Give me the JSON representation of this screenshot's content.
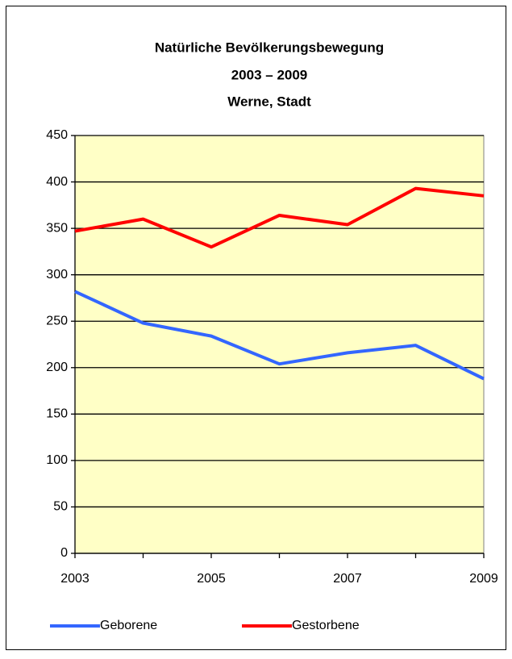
{
  "chart_data": {
    "type": "line",
    "title": [
      "Natürliche Bevölkerungsbewegung",
      "2003 – 2009",
      "Werne, Stadt"
    ],
    "x": [
      2003,
      2004,
      2005,
      2006,
      2007,
      2008,
      2009
    ],
    "xlim": [
      2003,
      2009
    ],
    "xticks": [
      2003,
      2005,
      2007,
      2009
    ],
    "ylim": [
      0,
      450
    ],
    "yticks": [
      0,
      50,
      100,
      150,
      200,
      250,
      300,
      350,
      400,
      450
    ],
    "grid": true,
    "legend": "bottom",
    "series": [
      {
        "name": "Geborene",
        "color": "#3366ff",
        "values": [
          282,
          248,
          234,
          204,
          216,
          224,
          188
        ]
      },
      {
        "name": "Gestorbene",
        "color": "#ff0000",
        "values": [
          347,
          360,
          330,
          364,
          354,
          393,
          385
        ]
      }
    ]
  }
}
